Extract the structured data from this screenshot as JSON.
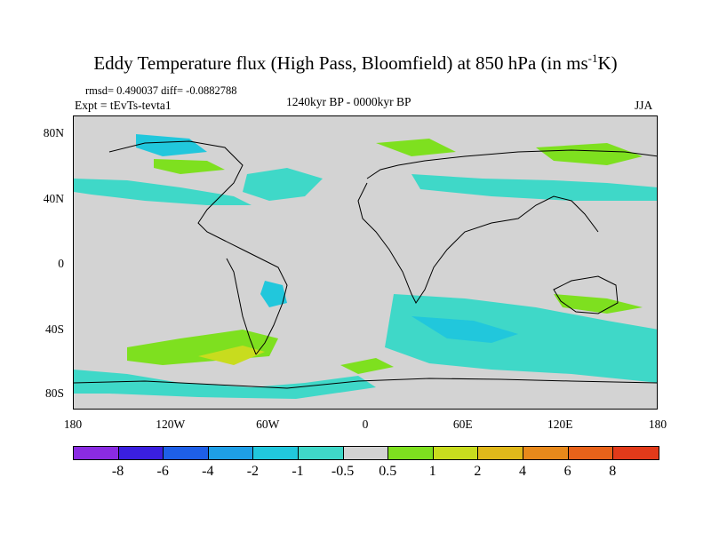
{
  "title": {
    "main": "Eddy Temperature flux (High Pass, Bloomfield) at 850 hPa (in ms",
    "sup": "-1",
    "end": "K)"
  },
  "stats": "rmsd= 0.490037 diff= -0.0882788",
  "experiment": "Expt = tEvTs-tevta1",
  "period": "1240kyr BP - 0000kyr BP",
  "season": "JJA",
  "x_axis": {
    "ticks": [
      "180",
      "120W",
      "60W",
      "0",
      "60E",
      "120E",
      "180"
    ]
  },
  "y_axis": {
    "ticks": [
      "80N",
      "40N",
      "0",
      "40S",
      "80S"
    ]
  },
  "colorbar": {
    "colors": [
      "#8a2be2",
      "#3a1fe0",
      "#1e5fe8",
      "#1e9fe6",
      "#21c7dc",
      "#3fd8c8",
      "#d3d3d3",
      "#7ee01f",
      "#c8dc1e",
      "#e0b81a",
      "#e8891b",
      "#e8621a",
      "#e23a1a"
    ],
    "labels": [
      "-8",
      "-6",
      "-4",
      "-2",
      "-1",
      "-0.5",
      "0.5",
      "1",
      "2",
      "4",
      "6",
      "8"
    ]
  },
  "legend_colors": {
    "background": "#d3d3d3",
    "land_outline": "#000000"
  }
}
